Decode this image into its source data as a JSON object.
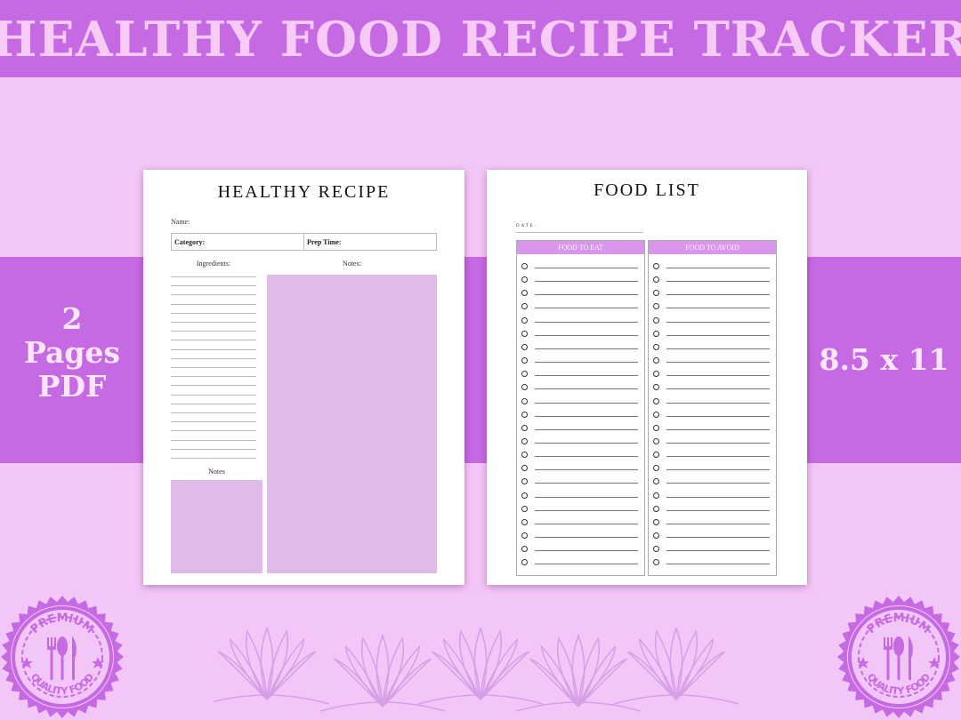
{
  "banner": {
    "title": "HEALTHY FOOD RECIPE TRACKER"
  },
  "left_badge": {
    "lines": [
      "2",
      "Pages",
      "PDF"
    ]
  },
  "right_badge": {
    "text": "8.5 x 11"
  },
  "recipe_page": {
    "title": "HEALTHY RECIPE",
    "name_label": "Name:",
    "category_label": "Category:",
    "prep_time_label": "Prep Time:",
    "ingredients_label": "Ingredients:",
    "notes_label": "Notes:",
    "notes_small_label": "Notes",
    "ingredient_line_count": 21
  },
  "food_list_page": {
    "title": "FOOD LIST",
    "date_label": "DATE:",
    "columns": [
      {
        "header": "FOOD TO EAT"
      },
      {
        "header": "FOOD TO AVOID"
      }
    ],
    "rows_per_column": 23
  },
  "seal": {
    "top_text": "PREMIUM",
    "bottom_text": "QUALITY FOOD"
  },
  "colors": {
    "band": "#c66ae3",
    "background": "#f3c6f8",
    "notes_fill": "#dfbbe7",
    "header_fill": "#d996ec",
    "seal": "#c66ae3"
  }
}
